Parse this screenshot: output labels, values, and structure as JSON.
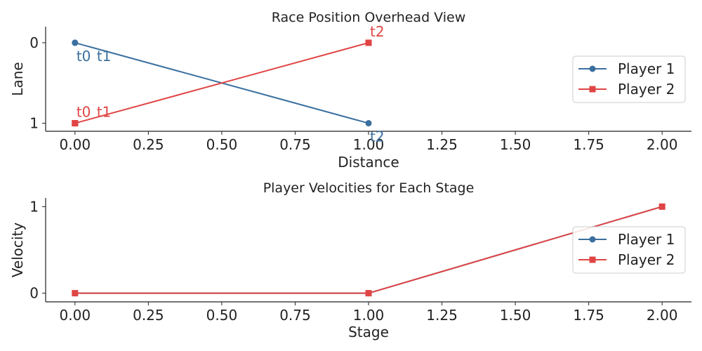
{
  "chart_data": [
    {
      "type": "line",
      "title": "Race Position Overhead View",
      "xlabel": "Distance",
      "ylabel": "Lane",
      "xlim": [
        -0.1,
        2.1
      ],
      "ylim": [
        1.1,
        -0.2
      ],
      "y_inverted": true,
      "xticks": [
        "0.00",
        "0.25",
        "0.50",
        "0.75",
        "1.00",
        "1.25",
        "1.50",
        "1.75",
        "2.00"
      ],
      "xtick_values": [
        0,
        0.25,
        0.5,
        0.75,
        1.0,
        1.25,
        1.5,
        1.75,
        2.0
      ],
      "yticks": [
        "0",
        "1"
      ],
      "ytick_values": [
        0,
        1
      ],
      "grid": false,
      "legend": "right",
      "series": [
        {
          "name": "Player 1",
          "color": "#3a6f9f",
          "marker": "circle",
          "x": [
            0,
            0,
            1
          ],
          "y": [
            0,
            0,
            1
          ],
          "annotations": [
            {
              "text": "t0",
              "x": 0,
              "y": 0,
              "placement": "below-right"
            },
            {
              "text": "t1",
              "x": 0,
              "y": 0,
              "placement": "below-right-2"
            },
            {
              "text": "t2",
              "x": 1,
              "y": 1,
              "placement": "below-right"
            }
          ]
        },
        {
          "name": "Player 2",
          "color": "#e04444",
          "marker": "square",
          "x": [
            0,
            0,
            1
          ],
          "y": [
            1,
            1,
            0
          ],
          "annotations": [
            {
              "text": "t0",
              "x": 0,
              "y": 1,
              "placement": "above-right"
            },
            {
              "text": "t1",
              "x": 0,
              "y": 1,
              "placement": "above-right-2"
            },
            {
              "text": "t2",
              "x": 1,
              "y": 0,
              "placement": "above-right"
            }
          ]
        }
      ]
    },
    {
      "type": "line",
      "title": "Player Velocities for Each Stage",
      "xlabel": "Stage",
      "ylabel": "Velocity",
      "xlim": [
        -0.1,
        2.1
      ],
      "ylim": [
        -0.1,
        1.1
      ],
      "y_inverted": false,
      "xticks": [
        "0.00",
        "0.25",
        "0.50",
        "0.75",
        "1.00",
        "1.25",
        "1.50",
        "1.75",
        "2.00"
      ],
      "xtick_values": [
        0,
        0.25,
        0.5,
        0.75,
        1.0,
        1.25,
        1.5,
        1.75,
        2.0
      ],
      "yticks": [
        "0",
        "1"
      ],
      "ytick_values": [
        0,
        1
      ],
      "grid": false,
      "legend": "right",
      "series": [
        {
          "name": "Player 1",
          "color": "#3a6f9f",
          "marker": "circle",
          "x": [
            0,
            1,
            2
          ],
          "y": [
            0,
            0,
            1
          ],
          "annotations": []
        },
        {
          "name": "Player 2",
          "color": "#e04444",
          "marker": "square",
          "x": [
            0,
            1,
            2
          ],
          "y": [
            0,
            0,
            1
          ],
          "annotations": []
        }
      ]
    }
  ]
}
